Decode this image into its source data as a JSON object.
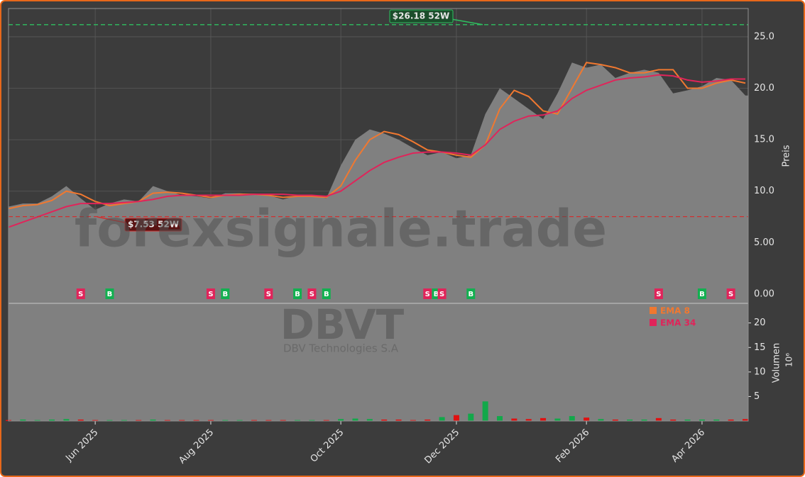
{
  "chart_data": {
    "type": "area",
    "categories": [
      null,
      null,
      null,
      null,
      null,
      null,
      "Jun 2025",
      null,
      null,
      null,
      null,
      null,
      null,
      null,
      "Aug 2025",
      null,
      null,
      null,
      null,
      null,
      null,
      null,
      null,
      "Oct 2025",
      null,
      null,
      null,
      null,
      null,
      null,
      null,
      "Dec 2025",
      null,
      null,
      null,
      null,
      null,
      null,
      null,
      null,
      "Feb 2026",
      null,
      null,
      null,
      null,
      null,
      null,
      null,
      "Apr 2026",
      null,
      null,
      null
    ],
    "series": [
      {
        "name": "Preis",
        "color": "#808080",
        "values": [
          8.5,
          8.8,
          8.8,
          9.5,
          10.5,
          9.3,
          8.2,
          8.8,
          9.2,
          9.0,
          10.5,
          10.0,
          9.6,
          9.5,
          9.3,
          9.8,
          9.8,
          9.7,
          9.6,
          9.2,
          9.6,
          9.6,
          9.3,
          12.5,
          15.0,
          16.0,
          15.6,
          15.0,
          14.2,
          13.5,
          13.8,
          13.2,
          13.5,
          17.5,
          20.0,
          19.0,
          18.0,
          17.0,
          19.5,
          22.5,
          22.0,
          22.3,
          21.0,
          21.5,
          21.8,
          21.5,
          19.5,
          19.8,
          20.2,
          21.0,
          20.8,
          19.3
        ]
      },
      {
        "name": "EMA 8",
        "color": "#f07830",
        "values": [
          8.3,
          8.6,
          8.7,
          9.1,
          10.0,
          9.7,
          9.0,
          8.6,
          8.8,
          9.0,
          9.8,
          9.9,
          9.8,
          9.6,
          9.4,
          9.6,
          9.7,
          9.7,
          9.6,
          9.4,
          9.5,
          9.5,
          9.4,
          10.5,
          13.0,
          15.0,
          15.8,
          15.5,
          14.8,
          14.0,
          13.8,
          13.5,
          13.3,
          14.5,
          18.0,
          19.8,
          19.2,
          17.8,
          17.5,
          20.0,
          22.5,
          22.3,
          22.0,
          21.5,
          21.5,
          21.8,
          21.8,
          20.0,
          20.0,
          20.5,
          20.8,
          20.5
        ]
      },
      {
        "name": "EMA 34",
        "color": "#e0245a",
        "values": [
          6.5,
          7.0,
          7.5,
          8.0,
          8.5,
          8.8,
          8.8,
          8.8,
          8.9,
          9.0,
          9.2,
          9.5,
          9.6,
          9.6,
          9.6,
          9.6,
          9.6,
          9.7,
          9.7,
          9.7,
          9.6,
          9.6,
          9.5,
          10.0,
          11.0,
          12.0,
          12.8,
          13.3,
          13.7,
          13.8,
          13.8,
          13.7,
          13.5,
          14.5,
          16.0,
          16.8,
          17.3,
          17.4,
          17.8,
          19.0,
          19.8,
          20.3,
          20.8,
          21.0,
          21.1,
          21.3,
          21.2,
          20.8,
          20.6,
          20.7,
          20.9,
          20.9
        ]
      }
    ],
    "volume": {
      "name": "Volumen",
      "values": [
        0.2,
        0.3,
        0.2,
        0.3,
        0.4,
        0.3,
        0.2,
        0.2,
        0.2,
        0.2,
        0.3,
        0.2,
        0.2,
        0.2,
        0.2,
        0.2,
        0.2,
        0.2,
        0.2,
        0.2,
        0.2,
        0.2,
        0.2,
        0.4,
        0.5,
        0.4,
        0.3,
        0.3,
        0.2,
        0.3,
        0.8,
        1.2,
        1.5,
        4.0,
        1.0,
        0.5,
        0.4,
        0.6,
        0.5,
        1.0,
        0.7,
        0.4,
        0.3,
        0.3,
        0.3,
        0.6,
        0.3,
        0.3,
        0.3,
        0.3,
        0.3,
        0.4
      ],
      "ylim": [
        0,
        24
      ],
      "yticks": [
        5,
        10,
        15,
        20
      ],
      "unit": "10⁶"
    },
    "ylabel": "Preis",
    "ylim": [
      -0.9,
      27.75
    ],
    "yticks": [
      {
        "value": 0,
        "label": "0.00"
      },
      {
        "value": 5,
        "label": "5.00"
      },
      {
        "value": 10,
        "label": "10.0"
      },
      {
        "value": 15,
        "label": "15.0"
      },
      {
        "value": 20,
        "label": "20.0"
      },
      {
        "value": 25,
        "label": "25.0"
      }
    ],
    "grid": true,
    "high": {
      "value": 26.18,
      "label": "$26.18 52W"
    },
    "low": {
      "value": 7.53,
      "label": "$7.53 52W"
    },
    "signals": [
      {
        "at": 5,
        "label": "S"
      },
      {
        "at": 7,
        "label": "B"
      },
      {
        "at": 14,
        "label": "S"
      },
      {
        "at": 15,
        "label": "B"
      },
      {
        "at": 18,
        "label": "S"
      },
      {
        "at": 20,
        "label": "B"
      },
      {
        "at": 21,
        "label": "S"
      },
      {
        "at": 22,
        "label": "B"
      },
      {
        "at": 29,
        "label": "S"
      },
      {
        "at": 29.6,
        "label": "B"
      },
      {
        "at": 30,
        "label": "S"
      },
      {
        "at": 32,
        "label": "B"
      },
      {
        "at": 45,
        "label": "S"
      },
      {
        "at": 48,
        "label": "B"
      },
      {
        "at": 50,
        "label": "S"
      }
    ],
    "watermark": "forexsignale.trade",
    "ticker": "DBVT",
    "company": "DBV Technologies S.A"
  }
}
